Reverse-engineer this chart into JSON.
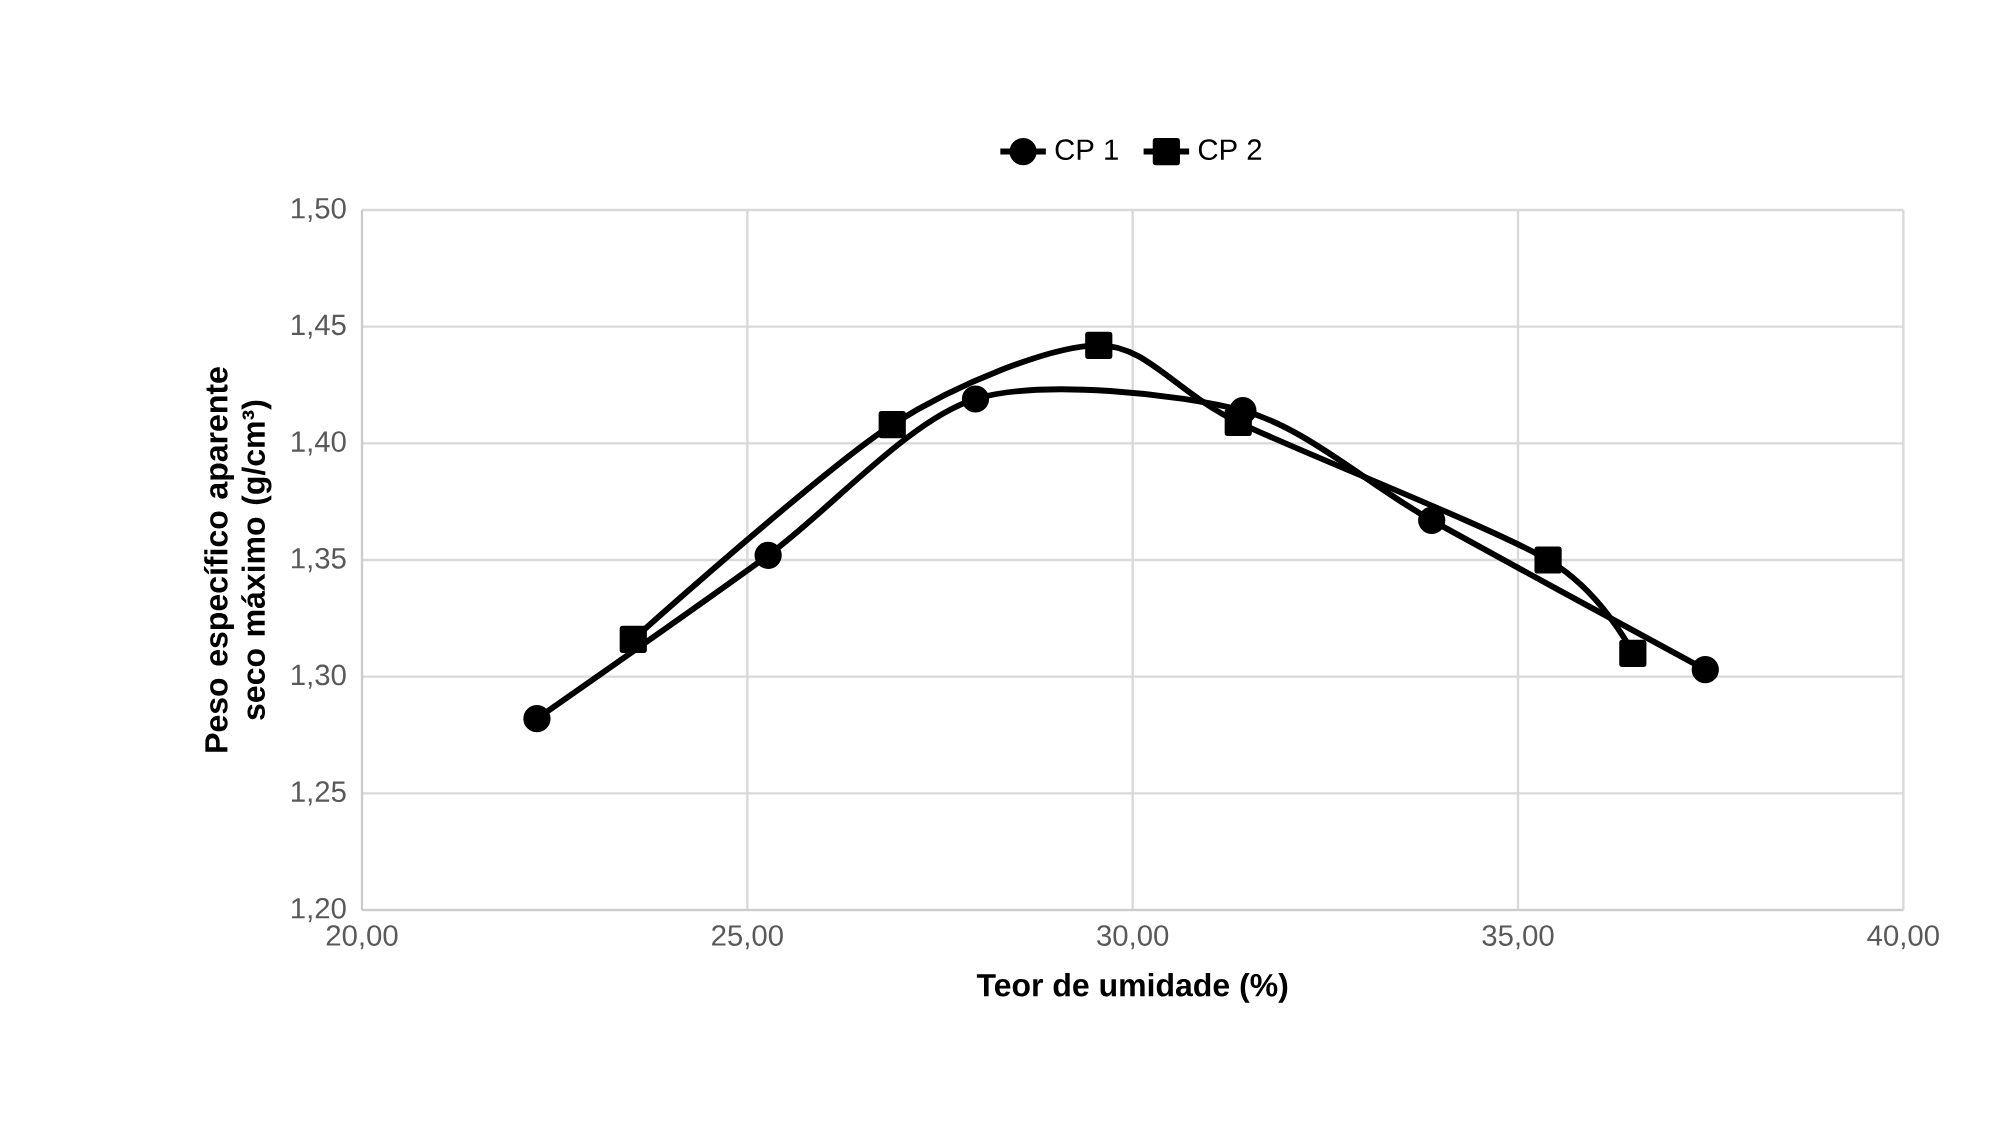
{
  "chart_data": {
    "type": "line",
    "xlabel": "Teor de umidade (%)",
    "ylabel": "Peso específico aparente seco máximo (g/cm³)",
    "series": [
      {
        "name": "CP 1",
        "color": "#000000",
        "marker": "circle",
        "x": [
          22.27,
          25.27,
          27.96,
          31.43,
          33.88,
          37.43
        ],
        "values": [
          1.282,
          1.352,
          1.419,
          1.414,
          1.367,
          1.303
        ]
      },
      {
        "name": "CP 2",
        "color": "#000000",
        "marker": "square",
        "x": [
          23.52,
          26.88,
          29.56,
          31.37,
          35.39,
          36.49
        ],
        "values": [
          1.316,
          1.408,
          1.442,
          1.409,
          1.35,
          1.31
        ]
      }
    ],
    "xlim": [
      20,
      40
    ],
    "ylim": [
      1.2,
      1.5
    ],
    "xticks": [
      {
        "value": 20,
        "label": "20,00"
      },
      {
        "value": 25,
        "label": "25,00"
      },
      {
        "value": 30,
        "label": "30,00"
      },
      {
        "value": 35,
        "label": "35,00"
      },
      {
        "value": 40,
        "label": "40,00"
      }
    ],
    "yticks": [
      {
        "value": 1.2,
        "label": "1,20"
      },
      {
        "value": 1.25,
        "label": "1,25"
      },
      {
        "value": 1.3,
        "label": "1,30"
      },
      {
        "value": 1.35,
        "label": "1,35"
      },
      {
        "value": 1.4,
        "label": "1,40"
      },
      {
        "value": 1.45,
        "label": "1,45"
      },
      {
        "value": 1.5,
        "label": "1,50"
      }
    ],
    "grid": true,
    "legend": "top",
    "line_style": "solid"
  }
}
